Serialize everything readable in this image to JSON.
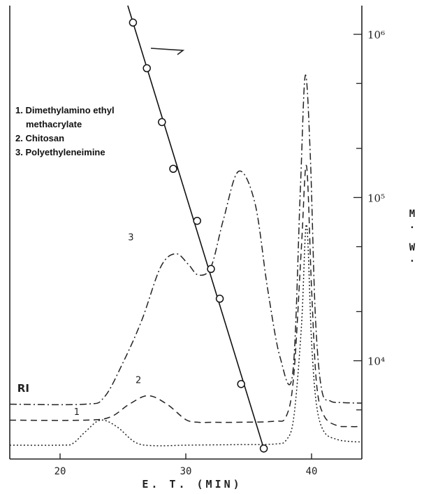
{
  "chart_data": {
    "type": "line",
    "xlabel": "E. T. (MIN)",
    "ylabel": "M. W.",
    "xlim": [
      16,
      44
    ],
    "x_ticks": [
      20,
      30,
      40
    ],
    "x_tick_labels": [
      "20",
      "30",
      "40"
    ],
    "y_scale": "log",
    "ylim": [
      2500,
      1500000
    ],
    "y_ticks": [
      10000,
      100000,
      1000000
    ],
    "y_tick_labels": [
      "10⁴",
      "10⁵",
      "10⁶"
    ],
    "grid": false,
    "legend_title": "",
    "legend": [
      "1. Dimethylamino ethyl",
      "methacrylate",
      "2. Chitosan",
      "3. Polyethyleneimine"
    ],
    "trace_labels": [
      "1",
      "2",
      "3",
      "RI"
    ],
    "calibration": {
      "x": [
        25.8,
        26.9,
        28.1,
        29.0,
        30.9,
        32.0,
        32.7,
        34.4,
        36.2
      ],
      "y": [
        1180000,
        620000,
        290000,
        150000,
        72000,
        36500,
        24000,
        7200,
        2900
      ]
    },
    "series": [
      {
        "name": "1",
        "style": "dotted",
        "x": [
          16,
          20,
          21,
          22,
          23.2,
          24.5,
          26,
          27.5,
          30,
          34,
          37,
          38,
          38.6,
          39.2,
          39.6,
          40.0,
          40.4,
          41,
          42,
          43,
          44
        ],
        "y": [
          0.05,
          0.05,
          0.08,
          0.3,
          0.52,
          0.4,
          0.1,
          0.04,
          0.05,
          0.06,
          0.07,
          0.15,
          0.6,
          2.3,
          4.2,
          2.0,
          0.8,
          0.3,
          0.16,
          0.12,
          0.11
        ]
      },
      {
        "name": "2",
        "style": "dashed",
        "x": [
          16,
          22,
          24,
          25.5,
          27.0,
          28.5,
          30,
          31,
          32,
          34,
          37,
          38,
          38.6,
          39.2,
          39.6,
          40.0,
          40.4,
          41,
          42,
          43,
          44
        ],
        "y": [
          0.52,
          0.52,
          0.58,
          0.82,
          0.98,
          0.82,
          0.53,
          0.48,
          0.48,
          0.48,
          0.5,
          0.6,
          1.4,
          3.8,
          5.3,
          3.0,
          1.2,
          0.6,
          0.42,
          0.4,
          0.4
        ]
      },
      {
        "name": "3",
        "style": "dash-dot",
        "x": [
          16,
          22,
          23.5,
          25,
          26.5,
          28,
          29.2,
          30.2,
          31.0,
          32.0,
          33.0,
          34.2,
          35.5,
          36.5,
          37.5,
          38.5,
          39.1,
          39.5,
          39.9,
          40.3,
          40.8,
          41.5,
          42.5,
          44
        ],
        "y": [
          0.82,
          0.82,
          0.95,
          1.6,
          2.4,
          3.4,
          3.65,
          3.45,
          3.25,
          3.4,
          4.3,
          5.2,
          4.6,
          3.0,
          1.7,
          1.4,
          4.8,
          7.0,
          5.5,
          2.5,
          1.1,
          0.88,
          0.85,
          0.84
        ]
      }
    ]
  }
}
